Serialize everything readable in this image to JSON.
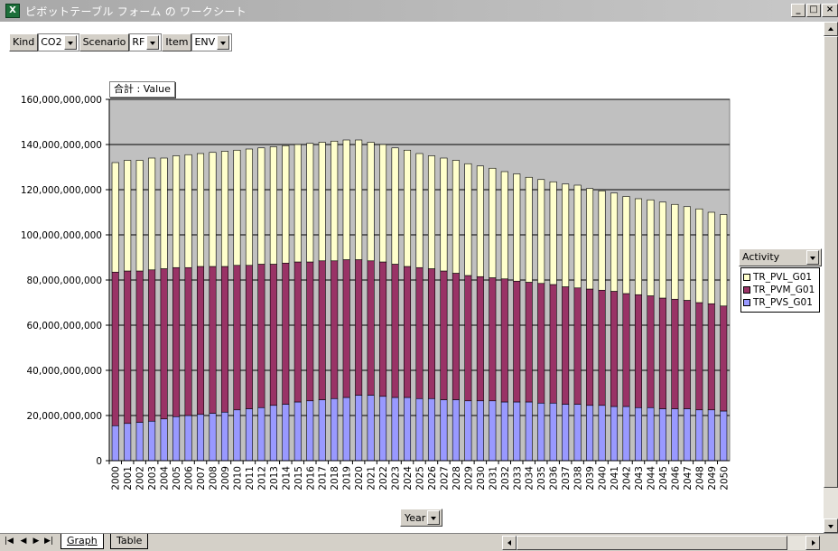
{
  "window": {
    "title": "ピボットテーブル フォーム の ワークシート",
    "minimize": "_",
    "restore": "□",
    "close": "×"
  },
  "filters": [
    {
      "label": "Kind",
      "value": "CO2"
    },
    {
      "label": "Scenario",
      "value": "RF"
    },
    {
      "label": "Item",
      "value": "ENV"
    }
  ],
  "data_field_label": "合計 : Value",
  "row_field_label": "Year",
  "legend": {
    "title": "Activity",
    "items": [
      {
        "label": "TR_PVL_G01",
        "color": "#ffffcc"
      },
      {
        "label": "TR_PVM_G01",
        "color": "#993366"
      },
      {
        "label": "TR_PVS_G01",
        "color": "#9999ff"
      }
    ]
  },
  "colors": {
    "plot_area": "#c0c0c0",
    "pvl": "#ffffcc",
    "pvm": "#993366",
    "pvs": "#9999ff"
  },
  "sheet_tabs": [
    {
      "label": "Graph",
      "active": true
    },
    {
      "label": "Table",
      "active": false
    }
  ],
  "chart_data": {
    "type": "bar",
    "stacked": true,
    "title": "",
    "xlabel": "Year",
    "ylabel": "合計 : Value",
    "ylim": [
      0,
      160000000000
    ],
    "yticks": [
      0,
      20000000000,
      40000000000,
      60000000000,
      80000000000,
      100000000000,
      120000000000,
      140000000000,
      160000000000
    ],
    "ytick_labels": [
      "0",
      "20,000,000,000",
      "40,000,000,000",
      "60,000,000,000",
      "80,000,000,000",
      "100,000,000,000",
      "120,000,000,000",
      "140,000,000,000",
      "160,000,000,000"
    ],
    "grid": true,
    "legend_position": "right",
    "categories": [
      "2000",
      "2001",
      "2002",
      "2003",
      "2004",
      "2005",
      "2006",
      "2007",
      "2008",
      "2009",
      "2010",
      "2011",
      "2012",
      "2013",
      "2014",
      "2015",
      "2016",
      "2017",
      "2018",
      "2019",
      "2020",
      "2021",
      "2022",
      "2023",
      "2024",
      "2025",
      "2026",
      "2027",
      "2028",
      "2029",
      "2030",
      "2031",
      "2032",
      "2033",
      "2034",
      "2035",
      "2036",
      "2037",
      "2038",
      "2039",
      "2040",
      "2041",
      "2042",
      "2043",
      "2044",
      "2045",
      "2046",
      "2047",
      "2048",
      "2049",
      "2050"
    ],
    "series": [
      {
        "name": "TR_PVS_G01",
        "values": [
          15500000000,
          16500000000,
          17000000000,
          17500000000,
          18500000000,
          19500000000,
          20000000000,
          20500000000,
          21000000000,
          21500000000,
          22500000000,
          23000000000,
          23500000000,
          24500000000,
          25000000000,
          26000000000,
          26500000000,
          27000000000,
          27500000000,
          28000000000,
          29000000000,
          29000000000,
          28500000000,
          28000000000,
          28000000000,
          27500000000,
          27500000000,
          27000000000,
          27000000000,
          26500000000,
          26500000000,
          26500000000,
          26000000000,
          26000000000,
          26000000000,
          25500000000,
          25500000000,
          25000000000,
          25000000000,
          24500000000,
          24500000000,
          24000000000,
          24000000000,
          23500000000,
          23500000000,
          23000000000,
          23000000000,
          23000000000,
          22500000000,
          22500000000,
          22000000000
        ]
      },
      {
        "name": "TR_PVM_G01",
        "values": [
          68000000000,
          67500000000,
          67000000000,
          67000000000,
          66500000000,
          66000000000,
          65500000000,
          65500000000,
          65000000000,
          64500000000,
          64000000000,
          63500000000,
          63500000000,
          62500000000,
          62500000000,
          62000000000,
          61500000000,
          61500000000,
          61000000000,
          61000000000,
          60000000000,
          59500000000,
          59500000000,
          59000000000,
          58000000000,
          58000000000,
          57500000000,
          57000000000,
          56000000000,
          55500000000,
          55000000000,
          54500000000,
          54500000000,
          53500000000,
          53000000000,
          53000000000,
          52500000000,
          52000000000,
          51500000000,
          51500000000,
          51000000000,
          51000000000,
          50000000000,
          50000000000,
          49500000000,
          49000000000,
          48500000000,
          48000000000,
          47500000000,
          47000000000,
          46500000000
        ]
      },
      {
        "name": "TR_PVL_G01",
        "values": [
          48500000000,
          49000000000,
          49000000000,
          49500000000,
          49000000000,
          49500000000,
          50000000000,
          50000000000,
          50500000000,
          51000000000,
          51000000000,
          51500000000,
          51500000000,
          52000000000,
          52000000000,
          52000000000,
          52500000000,
          52500000000,
          53000000000,
          53000000000,
          53000000000,
          52500000000,
          52000000000,
          51500000000,
          51500000000,
          50500000000,
          50000000000,
          50000000000,
          50000000000,
          49500000000,
          49000000000,
          48500000000,
          47500000000,
          47500000000,
          46500000000,
          46000000000,
          45500000000,
          45500000000,
          45500000000,
          44500000000,
          44000000000,
          43500000000,
          43000000000,
          42500000000,
          42500000000,
          42500000000,
          42000000000,
          41500000000,
          41500000000,
          40500000000,
          40500000000
        ]
      }
    ]
  }
}
